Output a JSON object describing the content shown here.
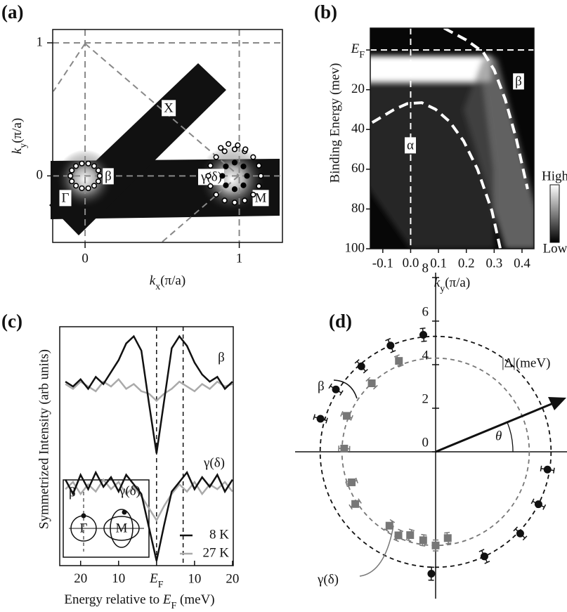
{
  "chart_data": [
    {
      "type": "map",
      "panel": "(a)",
      "xlabel": [
        "k",
        "x",
        "(π/a)"
      ],
      "ylabel": [
        "k",
        "y",
        "(π/a)"
      ],
      "xlim": [
        -0.21,
        1.28
      ],
      "ylim": [
        -0.5,
        1.1
      ],
      "xticks": [
        0,
        1
      ],
      "yticks": [
        0,
        1
      ],
      "grid": true,
      "annotations": [
        "X",
        "β",
        "Γ",
        "γ(δ)",
        "M"
      ],
      "series": [
        {
          "color": "#ffffff",
          "x": [
            0.095,
            0.086,
            0.059,
            0.021,
            -0.021,
            -0.059,
            -0.086,
            -0.095,
            -0.086,
            -0.059,
            -0.021,
            0.021,
            0.059,
            0.086,
            1.14,
            1.127,
            1.09,
            1.035,
            0.97,
            0.905,
            0.85,
            0.813,
            0.8,
            0.813,
            0.85,
            0.905,
            0.97,
            1.035,
            1.09,
            1.127,
            0.88,
            0.93,
            0.99,
            1.04
          ],
          "y": [
            0,
            0.041,
            0.074,
            0.093,
            0.093,
            0.074,
            0.041,
            0,
            -0.041,
            -0.074,
            -0.093,
            -0.093,
            -0.074,
            -0.041,
            0,
            0.077,
            0.141,
            0.185,
            0.2,
            0.185,
            0.141,
            0.077,
            0,
            -0.077,
            -0.141,
            -0.185,
            -0.2,
            -0.185,
            -0.141,
            -0.077,
            0.21,
            0.24,
            0.23,
            0.2
          ]
        },
        {
          "color": "#000000",
          "x": [
            1.05,
            1.027,
            0.97,
            0.913,
            0.89,
            0.913,
            0.97,
            1.027
          ],
          "y": [
            0,
            0.071,
            0.1,
            0.071,
            0,
            -0.071,
            -0.1,
            -0.071
          ]
        }
      ]
    },
    {
      "type": "heatmap",
      "panel": "(b)",
      "xlabel": [
        "k",
        "y",
        "(π/a)"
      ],
      "ylabel": "Binding Energy (mev)",
      "xlim": [
        -0.145,
        0.443
      ],
      "ylim": [
        100,
        -11
      ],
      "xticks": [
        -0.1,
        {
          "value": 0,
          "label": "0.0"
        },
        0.1,
        0.2,
        0.3,
        0.4
      ],
      "yticks": [
        {
          "value": 0,
          "label": "E",
          "sub": "F"
        },
        20,
        40,
        60,
        80,
        100
      ],
      "vlines": [
        0
      ],
      "hlines": [
        0
      ],
      "annotations": [
        "β",
        "α"
      ],
      "colorbar": [
        "High",
        "Low"
      ],
      "curves": [
        {
          "color": "#ffffff",
          "x": [
            0.12,
            0.2,
            0.26,
            0.3,
            0.34,
            0.38,
            0.42
          ],
          "y": [
            -11,
            -5,
            1,
            10,
            25,
            45,
            70
          ]
        },
        {
          "color": "#ffffff",
          "x": [
            -0.138,
            -0.06,
            -0.012,
            0.04,
            0.089,
            0.14,
            0.19,
            0.24,
            0.292,
            0.322
          ],
          "y": [
            36.5,
            30,
            27,
            26.5,
            29.8,
            36,
            45.7,
            60,
            81,
            100
          ]
        }
      ]
    },
    {
      "type": "line",
      "panel": "(c)",
      "xlabel": [
        "Energy relative to ",
        "E",
        "F",
        " (meV)"
      ],
      "ylabel": "Symmetrized Intensity (arb units)",
      "xlim": [
        -25.5,
        20.2
      ],
      "ylim": [
        0,
        10
      ],
      "xticks": [
        {
          "value": -20,
          "label": "20"
        },
        {
          "value": -10,
          "label": "10"
        },
        {
          "value": 0,
          "label": "E",
          "sub": "F"
        },
        10,
        20
      ],
      "vlines": [
        0,
        7
      ],
      "curve_labels": [
        "β",
        "γ(δ)"
      ],
      "inset": [
        "β",
        "γ(δ)",
        "Γ",
        "M"
      ],
      "x": [
        -24,
        -22,
        -20,
        -18,
        -16,
        -14,
        -12,
        -10,
        -8,
        -6,
        -4,
        -2,
        0,
        2,
        4,
        6,
        8,
        10,
        12,
        14,
        16,
        18,
        20
      ],
      "series": [
        {
          "name": "8 K",
          "color": "#111111",
          "values": [
            7.7,
            7.5,
            7.8,
            7.4,
            7.9,
            7.6,
            8.1,
            8.6,
            9.3,
            9.6,
            9.0,
            6.8,
            4.7,
            6.9,
            9.1,
            9.6,
            9.2,
            8.5,
            8.0,
            7.7,
            7.9,
            7.4,
            7.7
          ],
          "values2": [
            3.6,
            3.0,
            3.8,
            3.2,
            3.9,
            3.3,
            3.7,
            3.1,
            3.8,
            3.4,
            3.0,
            1.6,
            0.2,
            1.7,
            3.1,
            3.5,
            3.9,
            3.2,
            3.7,
            3.3,
            3.8,
            3.1,
            3.6
          ]
        },
        {
          "name": "27 K",
          "color": "#aaaaaa",
          "values": [
            7.6,
            7.4,
            7.7,
            7.5,
            7.3,
            7.7,
            7.5,
            7.8,
            7.4,
            7.6,
            7.3,
            7.2,
            6.9,
            7.2,
            7.4,
            7.7,
            7.5,
            7.3,
            7.6,
            7.4,
            7.7,
            7.5,
            7.6
          ],
          "values2": [
            3.2,
            3.5,
            3.0,
            3.4,
            3.1,
            3.6,
            3.2,
            3.5,
            3.0,
            3.3,
            2.9,
            2.4,
            1.9,
            2.5,
            3.0,
            3.4,
            3.1,
            3.5,
            3.0,
            3.4,
            3.2,
            3.5,
            3.1
          ]
        }
      ]
    },
    {
      "type": "polar",
      "panel": "(d)",
      "rlim": [
        0,
        8
      ],
      "yticks": [
        0,
        2,
        4,
        6,
        8
      ],
      "annotations": [
        "|Δ|(meV)",
        "θ"
      ],
      "series": [
        {
          "name": "β",
          "color": "#111111",
          "marker": "circle",
          "fit_radius": 5.3,
          "theta": [
            96,
            113,
            131,
            148,
            164,
            -9,
            -27,
            -44,
            -65,
            -92
          ],
          "values": [
            5.4,
            5.3,
            5.2,
            5.4,
            5.5,
            5.2,
            5.3,
            5.4,
            5.3,
            5.6
          ],
          "errors": [
            0.3,
            0.3,
            0.3,
            0.3,
            0.3,
            0.3,
            0.3,
            0.3,
            0.3,
            0.3
          ]
        },
        {
          "name": "γ(δ)",
          "color": "#777777",
          "marker": "square",
          "fit_radius": 4.3,
          "theta": [
            112,
            133,
            158,
            178,
            200,
            213,
            238,
            246,
            253,
            262,
            270,
            278
          ],
          "values": [
            4.5,
            4.3,
            4.4,
            4.2,
            4.1,
            4.4,
            4.0,
            4.2,
            4.0,
            4.1,
            4.3,
            4.0
          ],
          "errors": [
            0.25,
            0.25,
            0.25,
            0.25,
            0.25,
            0.25,
            0.25,
            0.25,
            0.25,
            0.25,
            0.25,
            0.25
          ]
        }
      ]
    }
  ]
}
